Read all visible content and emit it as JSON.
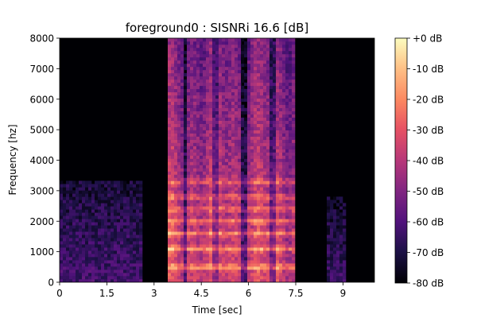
{
  "chart_data": {
    "type": "heatmap",
    "title": "foreground0 : SISNRi 16.6 [dB]",
    "xlabel": "Time [sec]",
    "ylabel": "Frequency [hz]",
    "xlim": [
      0,
      10
    ],
    "ylim": [
      0,
      8000
    ],
    "x_ticks": [
      0,
      1.5,
      3,
      4.5,
      6,
      7.5,
      9
    ],
    "x_tick_labels": [
      "0",
      "1.5",
      "3",
      "4.5",
      "6",
      "7.5",
      "9"
    ],
    "y_ticks": [
      0,
      1000,
      2000,
      3000,
      4000,
      5000,
      6000,
      7000,
      8000
    ],
    "y_tick_labels": [
      "0",
      "1000",
      "2000",
      "3000",
      "4000",
      "5000",
      "6000",
      "7000",
      "8000"
    ],
    "colorbar": {
      "colormap": "magma",
      "range_db": [
        -80,
        0
      ],
      "ticks": [
        0,
        -10,
        -20,
        -30,
        -40,
        -50,
        -60,
        -70,
        -80
      ],
      "tick_labels": [
        "+0 dB",
        "-10 dB",
        "-20 dB",
        "-30 dB",
        "-40 dB",
        "-50 dB",
        "-60 dB",
        "-70 dB",
        "-80 dB"
      ]
    },
    "time_regions": [
      {
        "start": 0.0,
        "end": 2.6,
        "kind": "low-level noise",
        "level_db": -62,
        "max_freq": 3300
      },
      {
        "start": 3.45,
        "end": 7.5,
        "kind": "speech",
        "level_db": -35,
        "max_freq": 8000
      },
      {
        "start": 8.5,
        "end": 9.1,
        "kind": "low-level noise",
        "level_db": -64,
        "max_freq": 2800
      }
    ],
    "harmonic_bands_hz": [
      500,
      1100,
      1600,
      2000,
      2400,
      2800,
      3300
    ],
    "background_db": -80
  }
}
